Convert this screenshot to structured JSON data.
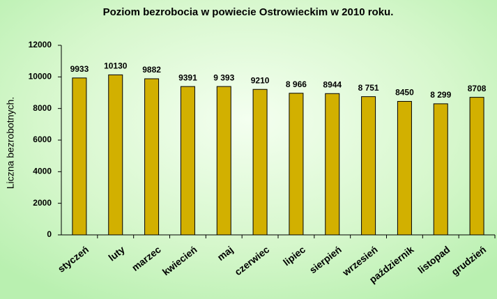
{
  "chart_data": {
    "type": "bar",
    "title": "Poziom bezrobocia w powiecie Ostrowieckim w 2010 roku.",
    "y_label": "Liczna bezrobotnych.",
    "categories": [
      "styczeń",
      "luty",
      "marzec",
      "kwiecień",
      "maj",
      "czerwiec",
      "lipiec",
      "sierpień",
      "wrzesień",
      "październik",
      "listopad",
      "grudzień"
    ],
    "values": [
      9933,
      10130,
      9882,
      9391,
      9393,
      9210,
      8966,
      8944,
      8751,
      8450,
      8299,
      8708
    ],
    "value_labels": [
      "9933",
      "10130",
      "9882",
      "9391",
      "9 393",
      "9210",
      "8 966",
      "8944",
      "8 751",
      "8450",
      "8 299",
      "8708"
    ],
    "color": "#d2b000",
    "ylim": [
      0,
      12000
    ],
    "yticks": [
      0,
      2000,
      4000,
      6000,
      8000,
      10000,
      12000
    ]
  }
}
